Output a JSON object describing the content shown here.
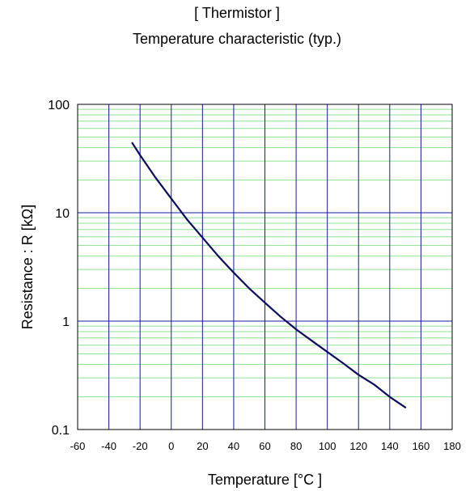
{
  "title_line1": "[ Thermistor ]",
  "title_line2": "Temperature characteristic (typ.)",
  "chart_data": {
    "type": "line",
    "title": "Temperature characteristic (typ.)",
    "xlabel": "Temperature  [°C ]",
    "ylabel": "Resistance : R [kΩ]",
    "xlim": [
      -60,
      180
    ],
    "ylim": [
      0.1,
      100
    ],
    "yscale": "log",
    "x_ticks": [
      -60,
      -40,
      -20,
      0,
      20,
      40,
      60,
      80,
      100,
      120,
      140,
      160,
      180
    ],
    "x_tick_labels": [
      "-60",
      "-40",
      "-20",
      "0",
      "20",
      "40",
      "60",
      "80",
      "100",
      "120",
      "140",
      "160",
      "180"
    ],
    "y_ticks": [
      0.1,
      1,
      10,
      100
    ],
    "y_tick_labels": [
      "0.1",
      "1",
      "10",
      "100"
    ],
    "grid": true,
    "colors": {
      "major_grid": "#1a1aa0",
      "minor_grid": "#8fe08f",
      "curve": "#0d0d5e",
      "frame": "#000000"
    },
    "series": [
      {
        "x": [
          -25,
          -20,
          -10,
          0,
          10,
          20,
          30,
          40,
          50,
          60,
          70,
          80,
          90,
          100,
          110,
          120,
          130,
          140,
          150
        ],
        "values": [
          44,
          34,
          21,
          13.5,
          8.7,
          5.9,
          4.0,
          2.8,
          2.0,
          1.48,
          1.1,
          0.84,
          0.66,
          0.52,
          0.41,
          0.32,
          0.26,
          0.2,
          0.16
        ]
      }
    ]
  }
}
